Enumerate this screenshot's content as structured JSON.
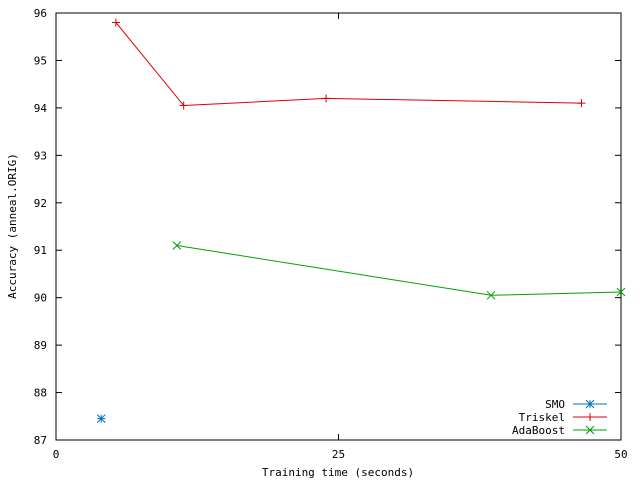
{
  "chart_data": {
    "type": "line",
    "title": "",
    "xlabel": "Training time (seconds)",
    "ylabel": "Accuracy (anneal.ORIG)",
    "xlim": [
      0,
      50
    ],
    "ylim": [
      87,
      96
    ],
    "xticks": [
      0,
      25,
      50
    ],
    "yticks": [
      87,
      88,
      89,
      90,
      91,
      92,
      93,
      94,
      95,
      96
    ],
    "grid": false,
    "legend_position": "bottom-right",
    "series": [
      {
        "name": "SMO",
        "color": "#0072bd",
        "marker": "asterisk",
        "line": false,
        "x": [
          4.0
        ],
        "y": [
          87.45
        ]
      },
      {
        "name": "Triskel",
        "color": "#dd0000",
        "marker": "plus",
        "line": true,
        "x": [
          5.3,
          11.3,
          23.9,
          46.5
        ],
        "y": [
          95.8,
          94.05,
          94.2,
          94.1
        ]
      },
      {
        "name": "AdaBoost",
        "color": "#00a000",
        "marker": "cross",
        "line": true,
        "x": [
          10.7,
          38.5,
          50.0
        ],
        "y": [
          91.1,
          90.05,
          90.12
        ]
      }
    ]
  }
}
